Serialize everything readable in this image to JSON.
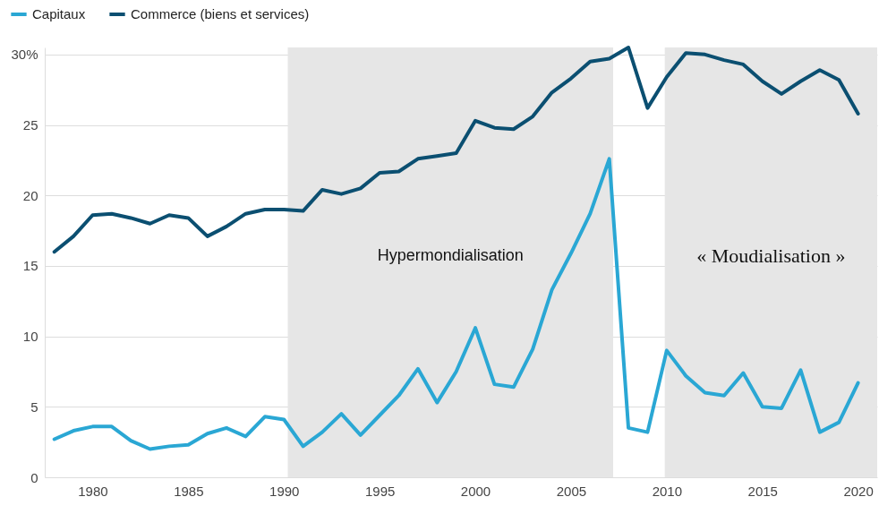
{
  "chart_data": {
    "type": "line",
    "x": [
      1978,
      1979,
      1980,
      1981,
      1982,
      1983,
      1984,
      1985,
      1986,
      1987,
      1988,
      1989,
      1990,
      1991,
      1992,
      1993,
      1994,
      1995,
      1996,
      1997,
      1998,
      1999,
      2000,
      2001,
      2002,
      2003,
      2004,
      2005,
      2006,
      2007,
      2008,
      2009,
      2010,
      2011,
      2012,
      2013,
      2014,
      2015,
      2016,
      2017,
      2018,
      2019,
      2020
    ],
    "series": [
      {
        "name": "Capitaux",
        "color": "#2aa7d4",
        "values": [
          2.7,
          3.3,
          3.6,
          3.6,
          2.6,
          2.0,
          2.2,
          2.3,
          3.1,
          3.5,
          2.9,
          4.3,
          4.1,
          2.2,
          3.2,
          4.5,
          3.0,
          4.4,
          5.8,
          7.7,
          5.3,
          7.5,
          10.6,
          6.6,
          6.4,
          9.1,
          13.3,
          15.9,
          18.7,
          22.6,
          3.5,
          3.2,
          9.0,
          7.2,
          6.0,
          5.8,
          7.4,
          5.0,
          4.9,
          7.6,
          3.2,
          3.9,
          6.7
        ]
      },
      {
        "name": "Commerce (biens et services)",
        "color": "#0b4f71",
        "values": [
          16.0,
          17.1,
          18.6,
          18.7,
          18.4,
          18.0,
          18.6,
          18.4,
          17.1,
          17.8,
          18.7,
          19.0,
          19.0,
          18.9,
          20.4,
          20.1,
          20.5,
          21.6,
          21.7,
          22.6,
          22.8,
          23.0,
          25.3,
          24.8,
          24.7,
          25.6,
          27.3,
          28.3,
          29.5,
          29.7,
          30.5,
          26.2,
          28.4,
          30.1,
          30.0,
          29.6,
          29.3,
          28.1,
          27.2,
          28.1,
          28.9,
          28.2,
          25.8
        ]
      }
    ],
    "xlim": [
      1977.5,
      2021
    ],
    "xticks": [
      1980,
      1985,
      1990,
      1995,
      2000,
      2005,
      2010,
      2015,
      2020
    ],
    "ylim": [
      0,
      30.5
    ],
    "yticks": [
      0,
      5,
      10,
      15,
      20,
      25,
      {
        "value": 30,
        "label": "30%"
      }
    ],
    "bands": [
      {
        "axis": "x",
        "from": 1990.2,
        "to": 2007.2,
        "label": "Hypermondialisation",
        "color": "#e6e6e6"
      },
      {
        "axis": "x",
        "from": 2009.9,
        "to": 2021,
        "label": "« Moudialisation »",
        "color": "#e6e6e6"
      }
    ],
    "grid": "y",
    "legend": "top left",
    "marker": "none",
    "line_style": "solid"
  }
}
